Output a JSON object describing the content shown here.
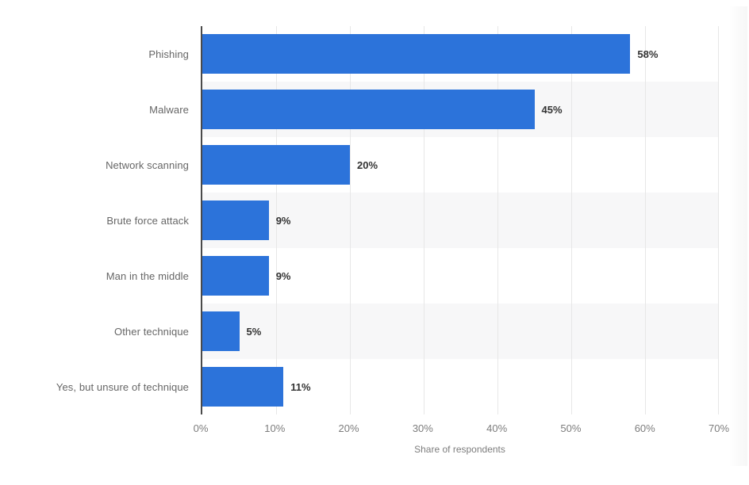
{
  "chart_data": {
    "type": "bar",
    "orientation": "horizontal",
    "title": "",
    "categories": [
      "Phishing",
      "Malware",
      "Network scanning",
      "Brute force attack",
      "Man in the middle",
      "Other technique",
      "Yes, but unsure of technique"
    ],
    "values": [
      58,
      45,
      20,
      9,
      9,
      5,
      11
    ],
    "value_labels": [
      "58%",
      "45%",
      "20%",
      "9%",
      "9%",
      "5%",
      "11%"
    ],
    "xlabel": "Share of respondents",
    "ylabel": "",
    "x_ticks": [
      "0%",
      "10%",
      "20%",
      "30%",
      "40%",
      "50%",
      "60%",
      "70%"
    ],
    "xlim": [
      0,
      70
    ],
    "grid": "vertical-gridlines-on",
    "legend": "none",
    "row_striping": "alternate rows shaded on rows 2, 4, 6"
  },
  "colors": {
    "bar_blue": "#2c73da",
    "row_stripe": "#f7f7f8",
    "gridline": "#e7e7e7",
    "axis_line": "#4a4a4a",
    "category_label_text": "#666666",
    "value_label_text": "#333333",
    "tick_label_text": "#7d7d7d",
    "background": "#ffffff"
  }
}
